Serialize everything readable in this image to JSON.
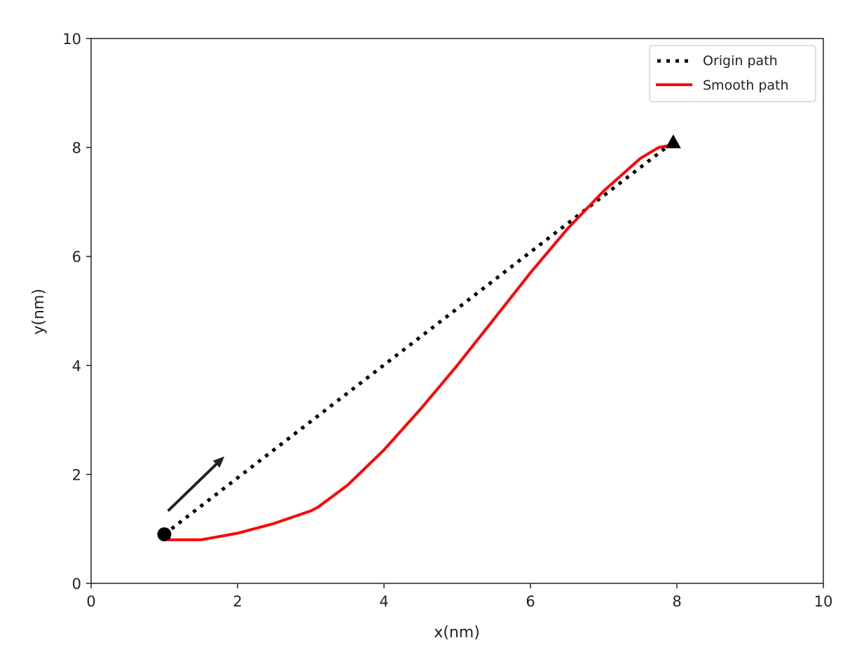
{
  "chart_data": {
    "type": "line",
    "title": "",
    "xlabel": "x(nm)",
    "ylabel": "y(nm)",
    "xlim": [
      0,
      10
    ],
    "ylim": [
      0,
      10
    ],
    "xticks": [
      "0",
      "2",
      "4",
      "6",
      "8",
      "10"
    ],
    "yticks": [
      "0",
      "2",
      "4",
      "6",
      "8",
      "10"
    ],
    "grid": false,
    "legend_position": "top-right",
    "series": [
      {
        "name": "Origin path",
        "style": "dotted",
        "color": "#000000",
        "x": [
          1.0,
          7.95
        ],
        "y": [
          0.9,
          8.1
        ]
      },
      {
        "name": "Smooth path",
        "style": "solid",
        "color": "#ff0000",
        "x": [
          1.05,
          1.5,
          2.0,
          2.5,
          3.0,
          3.1,
          3.5,
          4.0,
          4.5,
          5.0,
          5.5,
          6.0,
          6.5,
          7.0,
          7.5,
          7.75,
          7.95
        ],
        "y": [
          0.8,
          0.8,
          0.92,
          1.1,
          1.33,
          1.4,
          1.8,
          2.45,
          3.2,
          4.0,
          4.85,
          5.7,
          6.5,
          7.2,
          7.8,
          8.0,
          8.05
        ]
      }
    ],
    "markers": [
      {
        "shape": "circle",
        "x": 1.0,
        "y": 0.9,
        "color": "#000000"
      },
      {
        "shape": "triangle",
        "x": 7.95,
        "y": 8.1,
        "color": "#000000"
      }
    ],
    "annotations": [
      {
        "type": "arrow",
        "from": [
          1.05,
          1.33
        ],
        "to": [
          1.82,
          2.33
        ],
        "color": "#222222"
      }
    ]
  }
}
